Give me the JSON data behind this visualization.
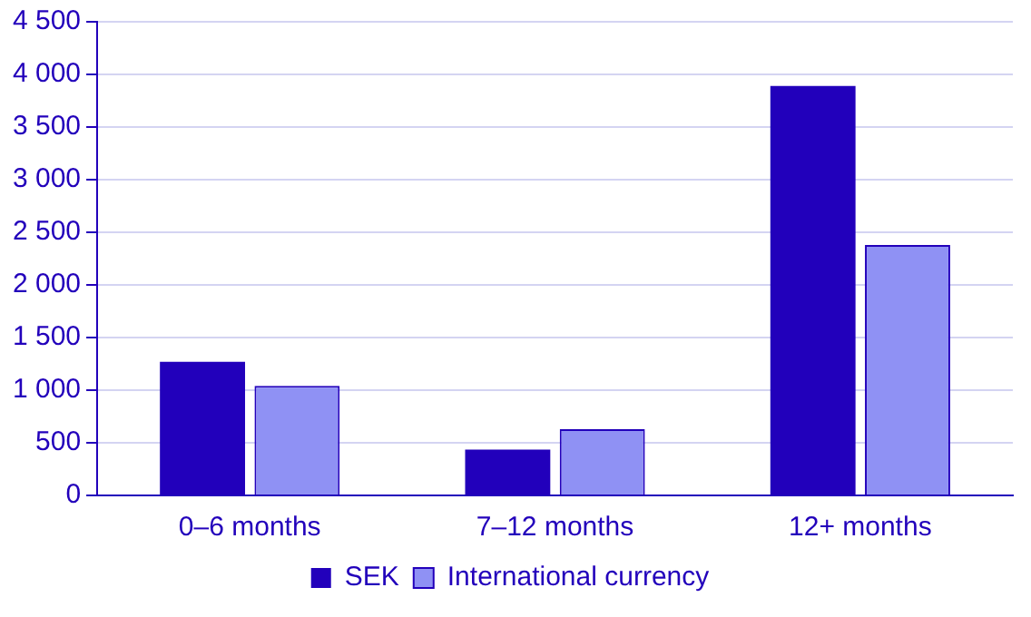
{
  "chart_data": {
    "type": "bar",
    "categories": [
      "0–6 months",
      "7–12 months",
      "12+ months"
    ],
    "series": [
      {
        "name": "SEK",
        "color": "#2200bb",
        "values": [
          1270,
          435,
          3890
        ]
      },
      {
        "name": "International currency",
        "color": "#8f91f4",
        "values": [
          1040,
          630,
          2380
        ]
      }
    ],
    "ylim": [
      0,
      4500
    ],
    "yticks": [
      0,
      500,
      {
        "value": 1000,
        "label": "1 000"
      },
      {
        "value": 1500,
        "label": "1 500"
      },
      {
        "value": 2000,
        "label": "2 000"
      },
      {
        "value": 2500,
        "label": "2 500"
      },
      {
        "value": 3000,
        "label": "3 000"
      },
      {
        "value": 3500,
        "label": "3 500"
      },
      {
        "value": 4000,
        "label": "4 000"
      },
      {
        "value": 4500,
        "label": "4 500"
      }
    ],
    "grid": "y",
    "legend": "bottom"
  }
}
